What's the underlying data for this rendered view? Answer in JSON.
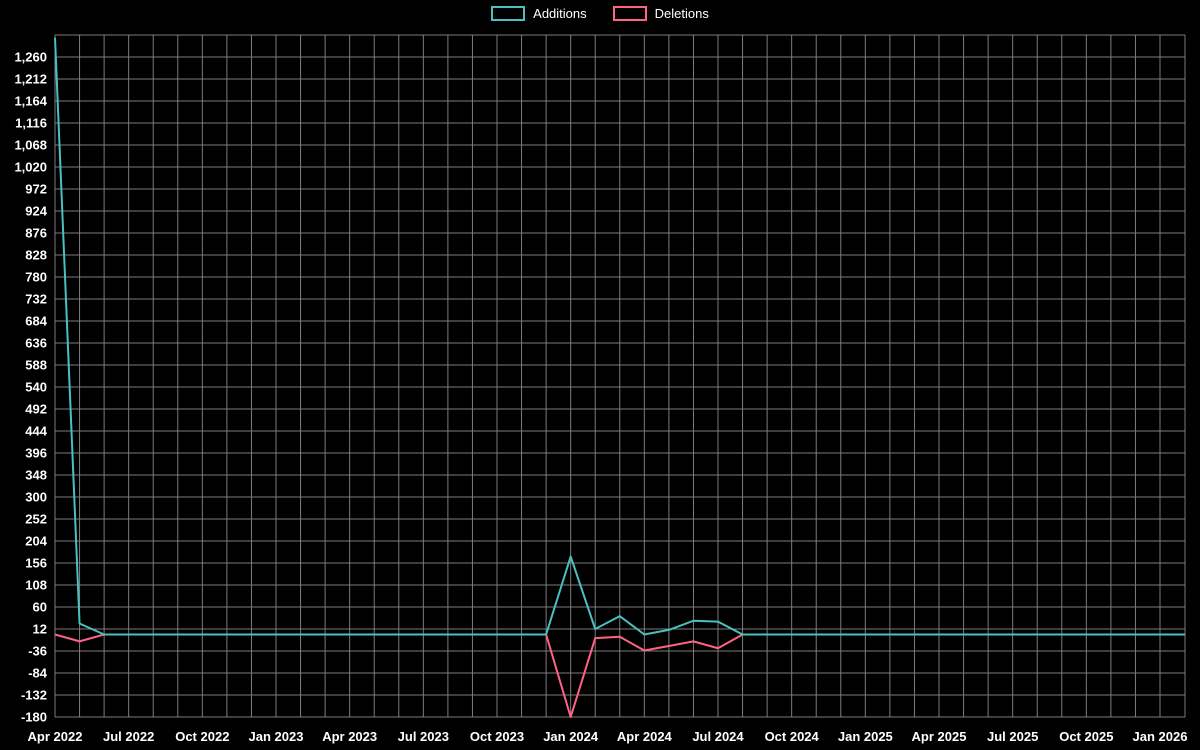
{
  "chart_data": {
    "type": "line",
    "title": "",
    "xlabel": "",
    "ylabel": "",
    "background": "#000000",
    "grid": true,
    "grid_color": "#7d7d7d",
    "text_color": "#ffffff",
    "legend_position": "top",
    "x": [
      "Apr 2022",
      "May 2022",
      "Jun 2022",
      "Jul 2022",
      "Aug 2022",
      "Sep 2022",
      "Oct 2022",
      "Nov 2022",
      "Dec 2022",
      "Jan 2023",
      "Feb 2023",
      "Mar 2023",
      "Apr 2023",
      "May 2023",
      "Jun 2023",
      "Jul 2023",
      "Aug 2023",
      "Sep 2023",
      "Oct 2023",
      "Nov 2023",
      "Dec 2023",
      "Jan 2024",
      "Feb 2024",
      "Mar 2024",
      "Apr 2024",
      "May 2024",
      "Jun 2024",
      "Jul 2024",
      "Aug 2024",
      "Sep 2024",
      "Oct 2024",
      "Nov 2024",
      "Dec 2024",
      "Jan 2025",
      "Feb 2025",
      "Mar 2025",
      "Apr 2025",
      "May 2025",
      "Jun 2025",
      "Jul 2025",
      "Aug 2025",
      "Sep 2025",
      "Oct 2025",
      "Nov 2025",
      "Dec 2025",
      "Jan 2026"
    ],
    "series": [
      {
        "name": "Additions",
        "color": "#4bc0c0",
        "values": [
          1302,
          24,
          0,
          0,
          0,
          0,
          0,
          0,
          0,
          0,
          0,
          0,
          0,
          0,
          0,
          0,
          0,
          0,
          0,
          0,
          0,
          170,
          12,
          40,
          0,
          10,
          30,
          28,
          0,
          0,
          0,
          0,
          0,
          0,
          0,
          0,
          0,
          0,
          0,
          0,
          0,
          0,
          0,
          0,
          0,
          0
        ]
      },
      {
        "name": "Deletions",
        "color": "#ff6384",
        "values": [
          0,
          -15,
          0,
          0,
          0,
          0,
          0,
          0,
          0,
          0,
          0,
          0,
          0,
          0,
          0,
          0,
          0,
          0,
          0,
          0,
          0,
          -180,
          -8,
          -5,
          -35,
          -25,
          -15,
          -30,
          0,
          0,
          0,
          0,
          0,
          0,
          0,
          0,
          0,
          0,
          0,
          0,
          0,
          0,
          0,
          0,
          0,
          0
        ]
      }
    ],
    "y_axis": {
      "min": -180,
      "max": 1260,
      "step": 48,
      "plot_top": 1308,
      "tick_format": "thousands-comma"
    },
    "x_axis": {
      "tick_every_months": 3,
      "first_label": "Apr 2022",
      "last_label": "Jan 2026"
    }
  }
}
